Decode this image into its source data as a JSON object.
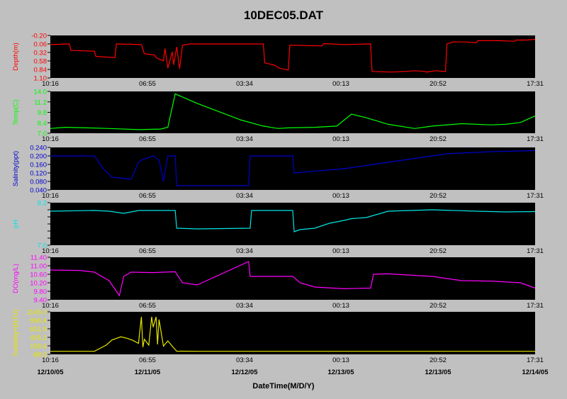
{
  "title": "10DEC05.DAT",
  "xlabel": "DateTime(M/D/Y)",
  "time_ticks": [
    "10:16",
    "06:55",
    "03:34",
    "00:13",
    "20:52",
    "17:31"
  ],
  "date_ticks": [
    "12/10/05",
    "12/11/05",
    "12/12/05",
    "12/13/05",
    "12/13/05",
    "12/14/05"
  ],
  "chart_data": [
    {
      "type": "line",
      "ylabel": "Depth(m)",
      "color": "#ff0000",
      "inverted": true,
      "ylim": [
        -0.2,
        1.1
      ],
      "yticks": [
        "-0.20",
        "0.06",
        "0.32",
        "0.58",
        "0.84",
        "1.10"
      ],
      "x_range": [
        "12/10/05 10:16",
        "12/14/05 17:31"
      ],
      "x": [
        0,
        0.13,
        0.14,
        0.3,
        0.31,
        0.44,
        0.45,
        0.62,
        0.64,
        0.71,
        0.72,
        0.74,
        0.77,
        0.78,
        0.8,
        0.83,
        0.84,
        0.86,
        0.88,
        0.9,
        0.95,
        1,
        1.38,
        1.45,
        1.46,
        1.52,
        1.53,
        1.56,
        1.62,
        1.63,
        1.85,
        1.86,
        2.0,
        2.18,
        2.19,
        2.32,
        2.41,
        2.42,
        2.48,
        2.55,
        2.56,
        2.62,
        2.69,
        2.7,
        2.74,
        2.82,
        2.9,
        2.91,
        3.06,
        3.16,
        3.17,
        3.24,
        3.3
      ],
      "y": [
        0.08,
        0.06,
        0.26,
        0.28,
        0.44,
        0.48,
        0.06,
        0.08,
        0.36,
        0.4,
        0.48,
        0.52,
        0.58,
        0.2,
        0.8,
        0.3,
        0.7,
        0.15,
        0.82,
        0.1,
        0.06,
        0.06,
        0.06,
        0.06,
        0.64,
        0.7,
        0.72,
        0.8,
        0.86,
        0.1,
        0.12,
        0.05,
        0.08,
        0.06,
        0.9,
        0.92,
        0.9,
        0.9,
        0.88,
        0.9,
        0.92,
        0.88,
        0.9,
        0.06,
        0.0,
        0.0,
        0.02,
        -0.04,
        -0.04,
        -0.02,
        -0.06,
        -0.06,
        -0.08
      ]
    },
    {
      "type": "line",
      "ylabel": "Temp(C)",
      "color": "#00ff00",
      "ylim": [
        7.0,
        14.0
      ],
      "yticks": [
        "14.0",
        "11.2",
        "9.8",
        "8.4",
        "7.0"
      ],
      "x_range": [
        "12/10/05 10:16",
        "12/14/05 17:31"
      ],
      "x": [
        0,
        0.1,
        0.25,
        0.4,
        0.6,
        0.75,
        0.8,
        0.85,
        1.0,
        1.15,
        1.3,
        1.45,
        1.55,
        1.62,
        1.8,
        1.95,
        2.05,
        2.15,
        2.3,
        2.48,
        2.6,
        2.8,
        3.0,
        3.1,
        3.2,
        3.3
      ],
      "y": [
        7.8,
        8.0,
        7.9,
        7.8,
        7.6,
        7.7,
        8.0,
        13.6,
        12.0,
        10.6,
        9.2,
        8.2,
        7.8,
        7.9,
        8.0,
        8.2,
        10.2,
        9.6,
        8.5,
        7.8,
        8.2,
        8.6,
        8.4,
        8.5,
        8.8,
        9.9
      ]
    },
    {
      "type": "line",
      "ylabel": "Salinity(ppt)",
      "color": "#0000cc",
      "ylim": [
        0.04,
        0.24
      ],
      "yticks": [
        "0.240",
        "0.200",
        "0.160",
        "0.120",
        "0.080",
        "0.040"
      ],
      "x_range": [
        "12/10/05 10:16",
        "12/14/05 17:31"
      ],
      "x": [
        0,
        0.3,
        0.36,
        0.42,
        0.55,
        0.6,
        0.62,
        0.7,
        0.74,
        0.77,
        0.8,
        0.82,
        0.85,
        0.86,
        1.35,
        1.36,
        1.65,
        1.66,
        2.0,
        2.2,
        2.4,
        2.5,
        2.6,
        2.7,
        3.0,
        3.3
      ],
      "y": [
        0.2,
        0.2,
        0.14,
        0.1,
        0.09,
        0.17,
        0.18,
        0.2,
        0.18,
        0.08,
        0.2,
        0.2,
        0.2,
        0.06,
        0.06,
        0.2,
        0.2,
        0.12,
        0.14,
        0.16,
        0.18,
        0.19,
        0.2,
        0.21,
        0.22,
        0.225
      ]
    },
    {
      "type": "line",
      "ylabel": "pH",
      "color": "#00e5e5",
      "ylim": [
        7.0,
        8.2
      ],
      "yticks": [
        "8.2",
        "",
        "",
        "",
        "",
        "",
        "7.0"
      ],
      "x_range": [
        "12/10/05 10:16",
        "12/14/05 17:31"
      ],
      "x": [
        0,
        0.3,
        0.4,
        0.5,
        0.6,
        0.85,
        0.86,
        1.0,
        1.36,
        1.37,
        1.65,
        1.66,
        1.7,
        1.8,
        1.9,
        2.0,
        2.05,
        2.15,
        2.3,
        2.6,
        2.9,
        3.1,
        3.3
      ],
      "y": [
        7.96,
        7.98,
        7.96,
        7.9,
        7.98,
        7.98,
        7.48,
        7.46,
        7.48,
        7.98,
        7.98,
        7.38,
        7.44,
        7.48,
        7.62,
        7.7,
        7.75,
        7.78,
        7.96,
        8.0,
        7.96,
        7.94,
        7.95
      ]
    },
    {
      "type": "line",
      "ylabel": "DO(mg/L)",
      "color": "#ff00ff",
      "ylim": [
        9.4,
        11.4
      ],
      "yticks": [
        "11.40",
        "11.00",
        "10.60",
        "10.20",
        "9.80",
        "9.40"
      ],
      "x_range": [
        "12/10/05 10:16",
        "12/14/05 17:31"
      ],
      "x": [
        0,
        0.2,
        0.3,
        0.4,
        0.47,
        0.5,
        0.55,
        0.7,
        0.85,
        0.9,
        1.0,
        1.35,
        1.36,
        1.65,
        1.7,
        1.8,
        2.0,
        2.18,
        2.2,
        2.3,
        2.6,
        2.8,
        3.0,
        3.2,
        3.3
      ],
      "y": [
        10.8,
        10.78,
        10.7,
        10.3,
        9.6,
        10.5,
        10.7,
        10.68,
        10.72,
        10.2,
        10.1,
        11.2,
        10.5,
        10.5,
        10.2,
        10.0,
        9.92,
        9.95,
        10.6,
        10.62,
        10.5,
        10.3,
        10.28,
        10.2,
        9.95
      ]
    },
    {
      "type": "line",
      "ylabel": "Turbidity+(NTU)",
      "color": "#e5e500",
      "ylim": [
        -88.0,
        1145.0
      ],
      "yticks": [
        "1145.0",
        "898.4",
        "651.8",
        "405.2",
        "158.6",
        "-88.0"
      ],
      "x_range": [
        "12/10/05 10:16",
        "12/14/05 17:31"
      ],
      "x": [
        0,
        0.3,
        0.38,
        0.42,
        0.48,
        0.52,
        0.56,
        0.6,
        0.62,
        0.63,
        0.64,
        0.67,
        0.69,
        0.7,
        0.72,
        0.73,
        0.74,
        0.77,
        0.8,
        0.84,
        0.86,
        1.0,
        2.0,
        3.0,
        3.3
      ],
      "y": [
        0,
        0,
        180,
        330,
        420,
        380,
        320,
        230,
        1000,
        120,
        350,
        180,
        1000,
        700,
        1000,
        200,
        920,
        150,
        300,
        100,
        5,
        0,
        0,
        0,
        0
      ]
    }
  ]
}
